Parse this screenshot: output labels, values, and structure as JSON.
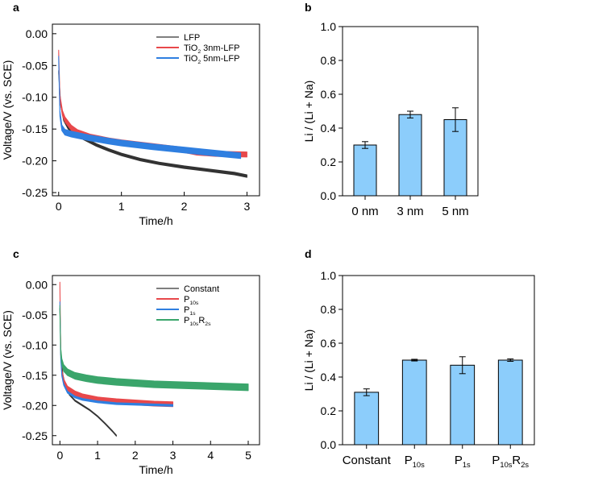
{
  "panels": [
    "a",
    "b",
    "c",
    "d"
  ],
  "chart_data": [
    {
      "panel": "a",
      "type": "line",
      "xlabel": "Time/h",
      "ylabel": "Voltage/V (vs. SCE)",
      "xlim": [
        -0.1,
        3.2
      ],
      "ylim": [
        -0.255,
        0.015
      ],
      "xticks": [
        0,
        1,
        2,
        3
      ],
      "yticks": [
        0.0,
        -0.05,
        -0.1,
        -0.15,
        -0.2,
        -0.25
      ],
      "ytick_labels": [
        "0.00",
        "-0.05",
        "-0.10",
        "-0.15",
        "-0.20",
        "-0.25"
      ],
      "legend": "top-right",
      "series": [
        {
          "name": "LFP",
          "color": "#333333",
          "band": 0.002,
          "x": [
            0,
            0.03,
            0.08,
            0.15,
            0.25,
            0.4,
            0.6,
            0.8,
            1.0,
            1.3,
            1.6,
            2.0,
            2.4,
            2.8,
            3.0
          ],
          "y": [
            -0.06,
            -0.11,
            -0.135,
            -0.148,
            -0.156,
            -0.165,
            -0.175,
            -0.183,
            -0.19,
            -0.198,
            -0.204,
            -0.21,
            -0.215,
            -0.22,
            -0.224
          ]
        },
        {
          "name": "TiO",
          "sub": "2",
          "tail": " 3nm-LFP",
          "color": "#e8484b",
          "band": 0.004,
          "x": [
            0,
            0.02,
            0.06,
            0.1,
            0.2,
            0.3,
            0.5,
            0.8,
            1.0,
            1.5,
            2.0,
            2.1,
            2.2,
            2.5,
            3.0
          ],
          "y": [
            -0.03,
            -0.1,
            -0.125,
            -0.135,
            -0.148,
            -0.155,
            -0.162,
            -0.168,
            -0.171,
            -0.177,
            -0.183,
            -0.185,
            -0.187,
            -0.189,
            -0.19
          ]
        },
        {
          "name": "TiO",
          "sub": "2",
          "tail": " 5nm-LFP",
          "color": "#2f7fe0",
          "band": 0.0045,
          "x": [
            0,
            0.02,
            0.05,
            0.1,
            0.2,
            0.3,
            0.5,
            0.8,
            1.0,
            1.5,
            2.0,
            2.5,
            2.9
          ],
          "y": [
            -0.04,
            -0.125,
            -0.148,
            -0.155,
            -0.158,
            -0.16,
            -0.164,
            -0.169,
            -0.172,
            -0.178,
            -0.183,
            -0.188,
            -0.192
          ]
        }
      ]
    },
    {
      "panel": "b",
      "type": "bar",
      "ylabel": "Li / (Li + Na)",
      "ylim": [
        0,
        1.0
      ],
      "yticks": [
        0.0,
        0.2,
        0.4,
        0.6,
        0.8,
        1.0
      ],
      "ytick_labels": [
        "0.0",
        "0.2",
        "0.4",
        "0.6",
        "0.8",
        "1.0"
      ],
      "categories": [
        {
          "main": "0 nm"
        },
        {
          "main": "3 nm"
        },
        {
          "main": "5 nm"
        }
      ],
      "values": [
        0.3,
        0.48,
        0.45
      ],
      "errors": [
        0.02,
        0.02,
        0.07
      ],
      "bar_color": "#8ccdfb"
    },
    {
      "panel": "c",
      "type": "line",
      "xlabel": "Time/h",
      "ylabel": "Voltage/V (vs. SCE)",
      "xlim": [
        -0.2,
        5.3
      ],
      "ylim": [
        -0.265,
        0.015
      ],
      "xticks": [
        0,
        1,
        2,
        3,
        4,
        5
      ],
      "yticks": [
        0.0,
        -0.05,
        -0.1,
        -0.15,
        -0.2,
        -0.25
      ],
      "ytick_labels": [
        "0.00",
        "-0.05",
        "-0.10",
        "-0.15",
        "-0.20",
        "-0.25"
      ],
      "legend": "top-right",
      "series": [
        {
          "name": "Constant",
          "color": "#333333",
          "band": 0.0008,
          "x": [
            0,
            0.03,
            0.08,
            0.15,
            0.25,
            0.4,
            0.6,
            0.8,
            1.0,
            1.2,
            1.4,
            1.5
          ],
          "y": [
            -0.04,
            -0.12,
            -0.15,
            -0.17,
            -0.182,
            -0.192,
            -0.2,
            -0.208,
            -0.218,
            -0.23,
            -0.243,
            -0.25
          ]
        },
        {
          "name": "P",
          "sub": "10s",
          "color": "#e8484b",
          "band": 0.004,
          "x": [
            0,
            0.02,
            0.05,
            0.1,
            0.2,
            0.4,
            0.6,
            1.0,
            1.5,
            2.0,
            2.5,
            3.0
          ],
          "y": [
            0.0,
            -0.11,
            -0.145,
            -0.16,
            -0.172,
            -0.18,
            -0.185,
            -0.19,
            -0.193,
            -0.195,
            -0.197,
            -0.198
          ]
        },
        {
          "name": "P",
          "sub": "1s",
          "color": "#2f7fe0",
          "band": 0.0015,
          "x": [
            0,
            0.02,
            0.05,
            0.1,
            0.2,
            0.4,
            0.6,
            1.0,
            1.5,
            2.0,
            2.5,
            3.0
          ],
          "y": [
            -0.03,
            -0.12,
            -0.15,
            -0.165,
            -0.178,
            -0.186,
            -0.19,
            -0.194,
            -0.197,
            -0.198,
            -0.199,
            -0.2
          ]
        },
        {
          "name": "P",
          "sub": "10s",
          "tail": "R",
          "sub2": "2s",
          "color": "#3aa56b",
          "band": 0.0055,
          "x": [
            0,
            0.02,
            0.05,
            0.1,
            0.2,
            0.4,
            0.7,
            1.0,
            1.5,
            2.0,
            2.5,
            3.0,
            3.5,
            4.0,
            4.5,
            5.0
          ],
          "y": [
            -0.04,
            -0.11,
            -0.128,
            -0.138,
            -0.145,
            -0.151,
            -0.155,
            -0.158,
            -0.161,
            -0.163,
            -0.165,
            -0.166,
            -0.167,
            -0.168,
            -0.169,
            -0.17
          ]
        }
      ]
    },
    {
      "panel": "d",
      "type": "bar",
      "ylabel": "Li / (Li + Na)",
      "ylim": [
        0,
        1.0
      ],
      "yticks": [
        0.0,
        0.2,
        0.4,
        0.6,
        0.8,
        1.0
      ],
      "ytick_labels": [
        "0.0",
        "0.2",
        "0.4",
        "0.6",
        "0.8",
        "1.0"
      ],
      "categories": [
        {
          "main": "Constant"
        },
        {
          "main": "P",
          "sub": "10s"
        },
        {
          "main": "P",
          "sub": "1s"
        },
        {
          "main": "P",
          "sub": "10s",
          "tail": "R",
          "sub2": "2s"
        }
      ],
      "values": [
        0.31,
        0.5,
        0.47,
        0.5
      ],
      "errors": [
        0.02,
        0.005,
        0.05,
        0.007
      ],
      "bar_color": "#8ccdfb"
    }
  ]
}
